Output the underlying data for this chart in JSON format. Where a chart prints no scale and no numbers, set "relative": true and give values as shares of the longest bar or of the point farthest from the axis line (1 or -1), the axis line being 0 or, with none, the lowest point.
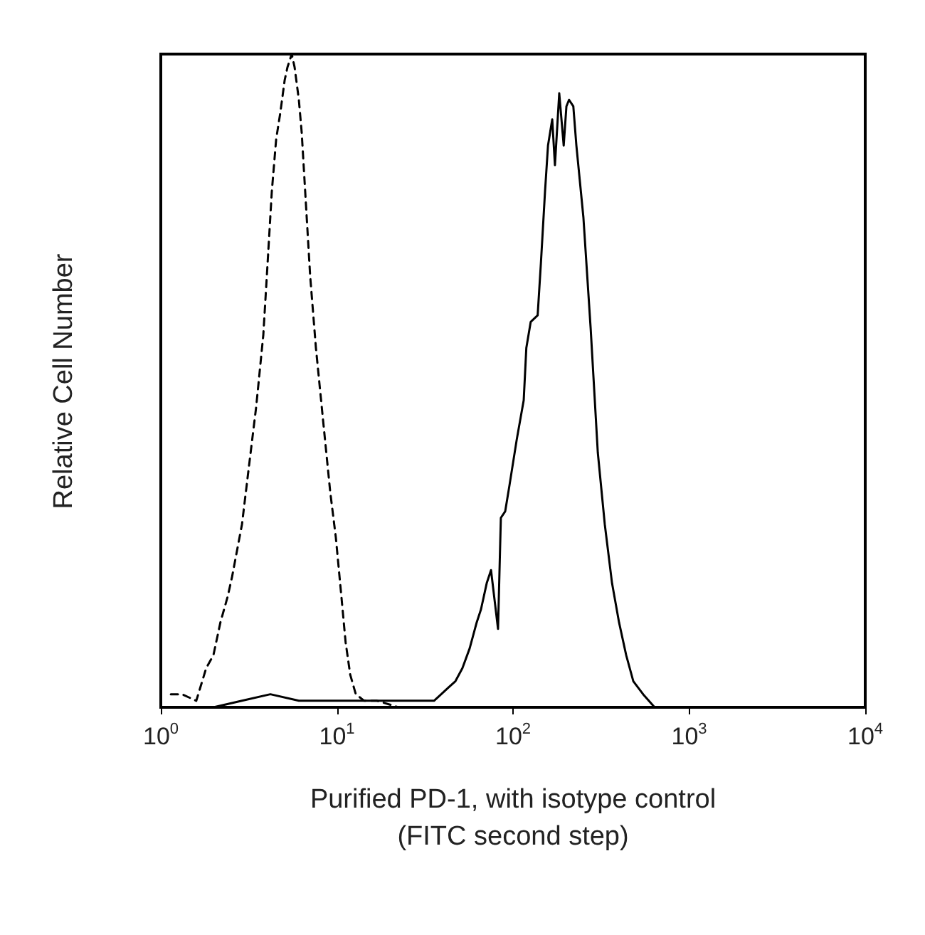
{
  "chart_data": {
    "type": "line",
    "relative": true,
    "log": "x",
    "xlabel": "Purified PD-1, with isotype control\n(FITC second step)",
    "ylabel": "Relative Cell Number",
    "xlim": [
      1,
      10000
    ],
    "xticks": [
      {
        "value": 1,
        "label": "10$^{0}$"
      },
      {
        "value": 10,
        "label": "10$^{1}$"
      },
      {
        "value": 100,
        "label": "10$^{2}$"
      },
      {
        "value": 1000,
        "label": "10$^{3}$"
      },
      {
        "value": 10000,
        "label": "10$^{4}$"
      }
    ],
    "grid": false,
    "marker": "none",
    "series": [
      {
        "color": "#000000",
        "line_style": "dashed",
        "x": [
          1.14,
          1.32,
          1.59,
          1.81,
          1.99,
          2.18,
          2.4,
          2.54,
          2.89,
          3.17,
          3.48,
          3.82,
          4.04,
          4.27,
          4.52,
          4.77,
          5.05,
          5.24,
          5.54,
          5.75,
          6.08,
          6.31,
          6.67,
          7.05,
          7.6,
          8.34,
          9.16,
          9.86,
          10.6,
          11.2,
          11.9,
          12.8,
          14.3,
          16.9,
          22.4
        ],
        "values": [
          0.02,
          0.02,
          0.01,
          0.06,
          0.08,
          0.13,
          0.17,
          0.2,
          0.28,
          0.37,
          0.46,
          0.57,
          0.68,
          0.79,
          0.87,
          0.91,
          0.96,
          0.98,
          1,
          0.98,
          0.93,
          0.88,
          0.77,
          0.66,
          0.55,
          0.44,
          0.33,
          0.26,
          0.17,
          0.1,
          0.05,
          0.02,
          0.01,
          0.01,
          0.0
        ]
      },
      {
        "color": "#000000",
        "line_style": "solid",
        "x": [
          1.99,
          2.89,
          4.19,
          6.08,
          8.82,
          12.8,
          18.6,
          26.9,
          35.6,
          39.1,
          42.9,
          47.1,
          51.6,
          56.7,
          62.2,
          65.8,
          70.9,
          75.0,
          82.2,
          85.3,
          90.3,
          95.5,
          105,
          115,
          119,
          126,
          138,
          144,
          152,
          158,
          167,
          173,
          183,
          194,
          201,
          208,
          220,
          229,
          251,
          276,
          303,
          332,
          365,
          400,
          439,
          482,
          548,
          637,
          767
        ],
        "values": [
          0.0,
          0.01,
          0.02,
          0.01,
          0.01,
          0.01,
          0.01,
          0.01,
          0.01,
          0.02,
          0.03,
          0.04,
          0.06,
          0.09,
          0.13,
          0.15,
          0.19,
          0.21,
          0.12,
          0.29,
          0.3,
          0.34,
          0.41,
          0.47,
          0.55,
          0.59,
          0.6,
          0.68,
          0.79,
          0.86,
          0.9,
          0.83,
          0.94,
          0.86,
          0.92,
          0.93,
          0.92,
          0.86,
          0.75,
          0.58,
          0.39,
          0.28,
          0.19,
          0.13,
          0.08,
          0.04,
          0.02,
          0.0,
          0.0
        ]
      }
    ]
  }
}
